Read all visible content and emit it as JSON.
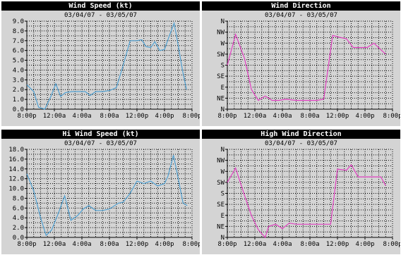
{
  "chart_data": [
    {
      "type": "line",
      "title": "Wind Speed (kt)",
      "subtitle": "03/04/07 - 03/05/07",
      "color": "#4f9fd0",
      "yticks": [
        "9.0",
        "8.0",
        "7.0",
        "6.0",
        "5.0",
        "4.0",
        "3.0",
        "2.0",
        "1.0",
        "0.0"
      ],
      "ylim": [
        0,
        9
      ],
      "xticks": [
        "8:00p",
        "12:00a",
        "4:00a",
        "8:00a",
        "12:00p",
        "4:00p",
        "8:00p"
      ],
      "xlim": [
        0,
        24
      ],
      "x": [
        0,
        1,
        1.7,
        2.6,
        3.5,
        4.2,
        4.9,
        5.6,
        6.6,
        7.5,
        8.5,
        9.2,
        10,
        11,
        12,
        13,
        14,
        15,
        16,
        16.7,
        17.3,
        18,
        18.6,
        19.3,
        20,
        20.7,
        21.4,
        22,
        22.6,
        23.2
      ],
      "y": [
        2.5,
        1.8,
        0.2,
        0,
        1.3,
        2.6,
        1.3,
        1.7,
        1.8,
        1.8,
        1.8,
        1.4,
        1.8,
        1.8,
        1.9,
        2.2,
        4.5,
        7,
        7,
        7.1,
        6.4,
        6.3,
        6.9,
        6,
        6.1,
        7.5,
        8.8,
        6.5,
        4,
        2
      ],
      "scale": "linear"
    },
    {
      "type": "line",
      "title": "Wind Direction",
      "subtitle": "03/04/07 - 03/05/07",
      "color": "#e040c0",
      "yticks": [
        "N",
        "NW",
        "W",
        "SW",
        "S",
        "SE",
        "E",
        "NE",
        "N"
      ],
      "ylim": [
        0,
        8
      ],
      "xticks": [
        "8:00p",
        "12:00a",
        "4:00a",
        "8:00a",
        "12:00p",
        "4:00p",
        "8:00p"
      ],
      "xlim": [
        0,
        24
      ],
      "x": [
        0,
        1.2,
        2.5,
        3.5,
        4.5,
        5.5,
        6.5,
        7.5,
        8.5,
        10,
        12,
        13,
        14,
        15.3,
        16.5,
        17.3,
        18.3,
        19.3,
        20.3,
        21.3,
        22.3,
        23
      ],
      "y": [
        4,
        6.8,
        4.6,
        1.8,
        0.8,
        1.2,
        0.8,
        0.8,
        0.9,
        0.8,
        0.8,
        0.8,
        0.9,
        6.7,
        6.5,
        6.4,
        5.6,
        5.6,
        5.6,
        6,
        5.4,
        5
      ],
      "scale": "ordinal"
    },
    {
      "type": "line",
      "title": "Hi Wind Speed (kt)",
      "subtitle": "03/04/07 - 03/05/07",
      "color": "#4f9fd0",
      "yticks": [
        "18.0",
        "16.0",
        "14.0",
        "12.0",
        "10.0",
        "8.0",
        "6.0",
        "4.0",
        "2.0",
        "0.0"
      ],
      "ylim": [
        0,
        18
      ],
      "xticks": [
        "8:00p",
        "12:00a",
        "4:00a",
        "8:00a",
        "12:00p",
        "4:00p",
        "8:00p"
      ],
      "xlim": [
        0,
        24
      ],
      "x": [
        0,
        1,
        2,
        2.8,
        3.6,
        4.6,
        5.5,
        6.4,
        7.4,
        8.2,
        9,
        10,
        11,
        12,
        13.3,
        14,
        15,
        16,
        17,
        18,
        19,
        20,
        20.5,
        21.3,
        22,
        22.7,
        23.3
      ],
      "y": [
        13,
        9.5,
        4,
        0.4,
        1.5,
        5,
        8.5,
        3.5,
        4.5,
        5.8,
        6.5,
        5.5,
        5.5,
        5.8,
        7,
        7.2,
        9,
        11.5,
        11,
        11.5,
        10.5,
        11,
        12.5,
        16.8,
        12,
        7,
        6.5
      ],
      "scale": "linear"
    },
    {
      "type": "line",
      "title": "High Wind Direction",
      "subtitle": "03/04/07 - 03/05/07",
      "color": "#e040c0",
      "yticks": [
        "N",
        "NW",
        "W",
        "SW",
        "S",
        "SE",
        "E",
        "NE",
        "N"
      ],
      "ylim": [
        0,
        8
      ],
      "xticks": [
        "8:00p",
        "12:00a",
        "4:00a",
        "8:00a",
        "12:00p",
        "4:00p",
        "8:00p"
      ],
      "xlim": [
        0,
        24
      ],
      "x": [
        0,
        1.2,
        2.5,
        3.5,
        4.5,
        5.5,
        6,
        7,
        8,
        9,
        10,
        11,
        12,
        13.5,
        14,
        15,
        16,
        17.3,
        18,
        19,
        20,
        21.5,
        22.3,
        23
      ],
      "y": [
        5,
        6.3,
        3.8,
        2,
        0.7,
        0,
        1,
        1.2,
        0.8,
        1.3,
        1.2,
        1.2,
        1.2,
        1.2,
        1.2,
        1.2,
        6.2,
        6.1,
        6.6,
        5.5,
        5.5,
        5.5,
        5.5,
        4.7
      ],
      "scale": "ordinal"
    }
  ]
}
